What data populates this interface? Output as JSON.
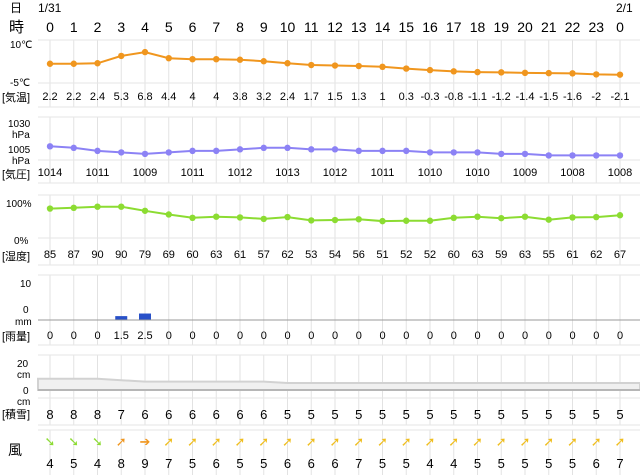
{
  "header": {
    "day_label": "日",
    "hour_label": "時",
    "date_start": "1/31",
    "date_end": "2/1",
    "hours": [
      "0",
      "1",
      "2",
      "3",
      "4",
      "5",
      "6",
      "7",
      "8",
      "9",
      "10",
      "11",
      "12",
      "13",
      "14",
      "15",
      "16",
      "17",
      "18",
      "19",
      "20",
      "21",
      "22",
      "23",
      "0"
    ]
  },
  "rows": {
    "temp": {
      "label": "[気温]",
      "axis_top": "10℃",
      "axis_bottom": "-5℃",
      "values": [
        2.2,
        2.2,
        2.4,
        5.3,
        6.8,
        4.4,
        4,
        4,
        3.8,
        3.2,
        2.4,
        1.7,
        1.5,
        1.3,
        1,
        0.3,
        -0.3,
        -0.8,
        -1.1,
        -1.2,
        -1.4,
        -1.5,
        -1.6,
        -2,
        -2.1
      ],
      "labels": [
        "2.2",
        "2.2",
        "2.4",
        "5.3",
        "6.8",
        "4.4",
        "4",
        "4",
        "3.8",
        "3.2",
        "2.4",
        "1.7",
        "1.5",
        "1.3",
        "1",
        "0.3",
        "-0.3",
        "-0.8",
        "-1.1",
        "-1.2",
        "-1.4",
        "-1.5",
        "-1.6",
        "-2",
        "-2.1"
      ],
      "color": "#f0961e"
    },
    "pressure": {
      "label": "[気圧]",
      "axis_top": "1030",
      "axis_top_unit": "hPa",
      "axis_bottom": "1005",
      "axis_bottom_unit": "hPa",
      "values": [
        1014,
        1013,
        1011,
        1010,
        1009,
        1010,
        1011,
        1011,
        1012,
        1013,
        1013,
        1012,
        1012,
        1011,
        1011,
        1011,
        1010,
        1010,
        1010,
        1009,
        1009,
        1008,
        1008,
        1008,
        1008
      ],
      "labels": [
        "1014",
        "",
        "1011",
        "",
        "1009",
        "",
        "1011",
        "",
        "1012",
        "",
        "1013",
        "",
        "1012",
        "",
        "1011",
        "",
        "1010",
        "",
        "1010",
        "",
        "1009",
        "",
        "1008",
        "",
        "1008"
      ],
      "color": "#8c82f5"
    },
    "humidity": {
      "label": "[湿度]",
      "axis_top": "100%",
      "axis_bottom": "0%",
      "values": [
        85,
        87,
        90,
        90,
        79,
        69,
        60,
        63,
        61,
        57,
        62,
        53,
        54,
        56,
        51,
        52,
        52,
        60,
        63,
        59,
        63,
        55,
        61,
        62,
        67
      ],
      "labels": [
        "85",
        "87",
        "90",
        "90",
        "79",
        "69",
        "60",
        "63",
        "61",
        "57",
        "62",
        "53",
        "54",
        "56",
        "51",
        "52",
        "52",
        "60",
        "63",
        "59",
        "63",
        "55",
        "61",
        "62",
        "67"
      ],
      "color": "#8cdc32"
    },
    "precip": {
      "label": "[雨量]",
      "axis_top": "10",
      "axis_mid": "0",
      "axis_unit": "mm",
      "values": [
        0,
        0,
        0,
        1.5,
        2.5,
        0,
        0,
        0,
        0,
        0,
        0,
        0,
        0,
        0,
        0,
        0,
        0,
        0,
        0,
        0,
        0,
        0,
        0,
        0,
        0
      ],
      "labels": [
        "0",
        "0",
        "0",
        "1.5",
        "2.5",
        "0",
        "0",
        "0",
        "0",
        "0",
        "0",
        "0",
        "0",
        "0",
        "0",
        "0",
        "0",
        "0",
        "0",
        "0",
        "0",
        "0",
        "0",
        "0",
        "0"
      ],
      "color": "#2850c8"
    },
    "snow": {
      "label": "[積雪]",
      "axis_top": "20",
      "axis_top_unit": "cm",
      "axis_mid": "0",
      "axis_mid_unit": "cm",
      "values": [
        8,
        8,
        8,
        7,
        6,
        6,
        6,
        6,
        6,
        6,
        5,
        5,
        5,
        5,
        5,
        5,
        5,
        5,
        5,
        5,
        5,
        5,
        5,
        5,
        5
      ],
      "labels": [
        "8",
        "8",
        "8",
        "7",
        "6",
        "6",
        "6",
        "6",
        "6",
        "6",
        "5",
        "5",
        "5",
        "5",
        "5",
        "5",
        "5",
        "5",
        "5",
        "5",
        "5",
        "5",
        "5",
        "5",
        "5"
      ],
      "color": "#d2d2d2"
    },
    "wind": {
      "label": "風",
      "speeds": [
        "4",
        "5",
        "4",
        "8",
        "9",
        "7",
        "5",
        "6",
        "5",
        "5",
        "6",
        "6",
        "6",
        "7",
        "5",
        "5",
        "4",
        "4",
        "5",
        "5",
        "5",
        "5",
        "5",
        "6",
        "7"
      ],
      "arrow_colors": [
        "#8cdc32",
        "#8cdc32",
        "#8cdc32",
        "#f0961e",
        "#f0961e",
        "#f0be1e",
        "#f0be1e",
        "#f0be1e",
        "#f0be1e",
        "#f0be1e",
        "#f0be1e",
        "#f0be1e",
        "#f0be1e",
        "#f0be1e",
        "#f0be1e",
        "#f0be1e",
        "#f0be1e",
        "#f0be1e",
        "#f0be1e",
        "#f0be1e",
        "#f0be1e",
        "#f0be1e",
        "#f0be1e",
        "#f0be1e",
        "#f0be1e"
      ],
      "arrow_glyphs": [
        "➘",
        "➘",
        "➘",
        "➚",
        "➔",
        "➚",
        "➚",
        "➚",
        "➚",
        "➚",
        "➚",
        "➚",
        "➚",
        "➚",
        "➚",
        "➚",
        "➚",
        "➚",
        "➚",
        "➚",
        "➚",
        "➚",
        "➚",
        "➚",
        "➚"
      ]
    }
  },
  "chart_data": {
    "type": "line",
    "categories": [
      "0",
      "1",
      "2",
      "3",
      "4",
      "5",
      "6",
      "7",
      "8",
      "9",
      "10",
      "11",
      "12",
      "13",
      "14",
      "15",
      "16",
      "17",
      "18",
      "19",
      "20",
      "21",
      "22",
      "23",
      "0"
    ],
    "series": [
      {
        "name": "気温",
        "values": [
          2.2,
          2.2,
          2.4,
          5.3,
          6.8,
          4.4,
          4,
          4,
          3.8,
          3.2,
          2.4,
          1.7,
          1.5,
          1.3,
          1,
          0.3,
          -0.3,
          -0.8,
          -1.1,
          -1.2,
          -1.4,
          -1.5,
          -1.6,
          -2,
          -2.1
        ]
      },
      {
        "name": "気圧",
        "values": [
          1014,
          1013,
          1011,
          1010,
          1009,
          1010,
          1011,
          1011,
          1012,
          1013,
          1013,
          1012,
          1012,
          1011,
          1011,
          1011,
          1010,
          1010,
          1010,
          1009,
          1009,
          1008,
          1008,
          1008,
          1008
        ]
      },
      {
        "name": "湿度",
        "values": [
          85,
          87,
          90,
          90,
          79,
          69,
          60,
          63,
          61,
          57,
          62,
          53,
          54,
          56,
          51,
          52,
          52,
          60,
          63,
          59,
          63,
          55,
          61,
          62,
          67
        ]
      },
      {
        "name": "雨量",
        "values": [
          0,
          0,
          0,
          1.5,
          2.5,
          0,
          0,
          0,
          0,
          0,
          0,
          0,
          0,
          0,
          0,
          0,
          0,
          0,
          0,
          0,
          0,
          0,
          0,
          0,
          0
        ]
      },
      {
        "name": "積雪",
        "values": [
          8,
          8,
          8,
          7,
          6,
          6,
          6,
          6,
          6,
          6,
          5,
          5,
          5,
          5,
          5,
          5,
          5,
          5,
          5,
          5,
          5,
          5,
          5,
          5,
          5
        ]
      },
      {
        "name": "風",
        "values": [
          4,
          5,
          4,
          8,
          9,
          7,
          5,
          6,
          5,
          5,
          6,
          6,
          6,
          7,
          5,
          5,
          4,
          4,
          5,
          5,
          5,
          5,
          5,
          6,
          7
        ]
      }
    ],
    "temp_range": [
      -5,
      10
    ],
    "pressure_range": [
      1005,
      1030
    ],
    "humidity_range": [
      0,
      100
    ],
    "precip_range": [
      0,
      10
    ],
    "snow_range": [
      0,
      20
    ],
    "grid": true
  }
}
